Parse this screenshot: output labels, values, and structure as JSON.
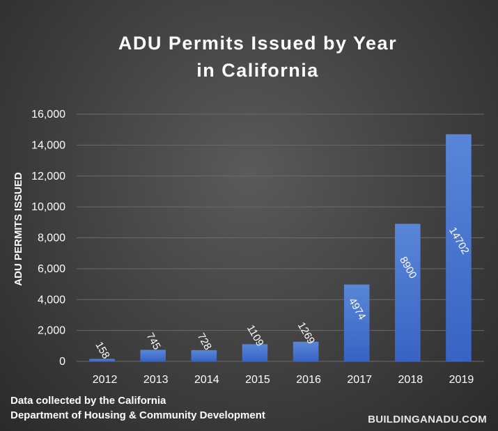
{
  "chart_data": {
    "type": "bar",
    "title": [
      "ADU Permits Issued by Year",
      "in California"
    ],
    "ylabel": "ADU PERMITS ISSUED",
    "xlabel": "",
    "categories": [
      "2012",
      "2013",
      "2014",
      "2015",
      "2016",
      "2017",
      "2018",
      "2019"
    ],
    "values": [
      158,
      745,
      728,
      1109,
      1269,
      4974,
      8900,
      14702
    ],
    "data_labels": [
      "158",
      "745",
      "728",
      "1109",
      "1269",
      "4974",
      "8900",
      "14702"
    ],
    "ylim": [
      0,
      16000
    ],
    "yticks": [
      0,
      2000,
      4000,
      6000,
      8000,
      10000,
      12000,
      14000,
      16000
    ],
    "ytick_labels": [
      "0",
      "2,000",
      "4,000",
      "6,000",
      "8,000",
      "10,000",
      "12,000",
      "14,000",
      "16,000"
    ],
    "grid": true,
    "legend": "none",
    "colors": {
      "bar_top": "#5a86d8",
      "bar_bottom": "#3863c4",
      "grid": "#6a6a6a",
      "text": "#ffffff"
    }
  },
  "footer": {
    "source_lines": [
      "Data collected by the California",
      "Department of Housing & Community Development"
    ],
    "brand": "BUILDINGANADU.COM"
  }
}
